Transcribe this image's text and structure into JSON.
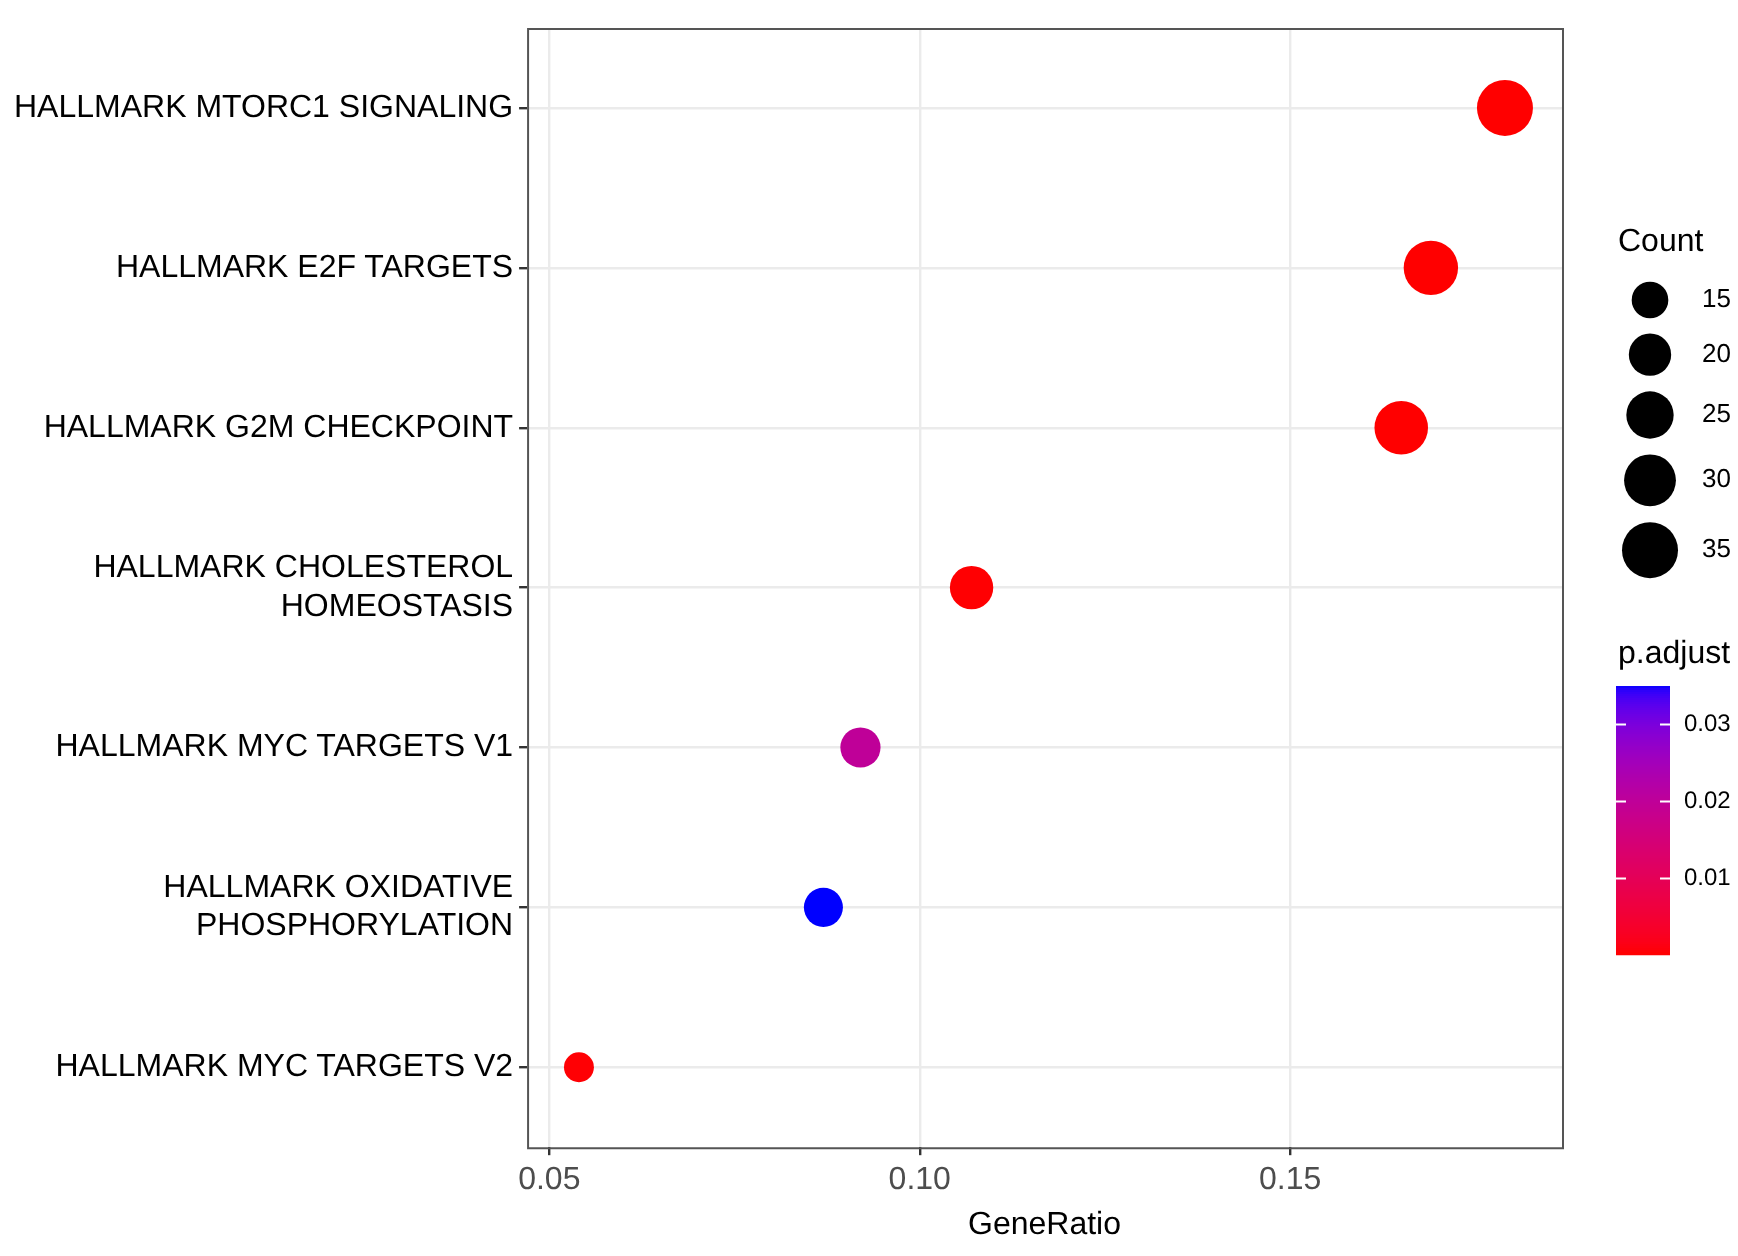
{
  "chart_data": {
    "type": "bubble",
    "orientation": "horizontal",
    "xlabel": "GeneRatio",
    "categories": [
      "HALLMARK MTORC1 SIGNALING",
      "HALLMARK E2F TARGETS",
      "HALLMARK G2M CHECKPOINT",
      "HALLMARK CHOLESTEROL HOMEOSTASIS",
      "HALLMARK MYC TARGETS V1",
      "HALLMARK OXIDATIVE PHOSPHORYLATION",
      "HALLMARK MYC TARGETS V2"
    ],
    "values": [
      0.179,
      0.169,
      0.165,
      0.107,
      0.092,
      0.087,
      0.054
    ],
    "sizes": [
      35,
      33,
      32,
      21,
      18,
      17,
      10
    ],
    "size_legend": [
      15,
      20,
      25,
      30,
      35
    ],
    "legend_title": "Count",
    "clabel": "p.adjust",
    "cvalues": [
      0.0002,
      0.0002,
      0.0002,
      0.0003,
      0.02,
      0.035,
      0.0004
    ],
    "clim": [
      0.0002,
      0.035
    ],
    "cticks": [
      0.01,
      0.02,
      0.03
    ],
    "xlim": [
      0.047,
      0.1867
    ],
    "xticks": [
      0.05,
      {
        "value": 0.1,
        "label": "0.10"
      },
      0.15
    ],
    "grid": true
  }
}
